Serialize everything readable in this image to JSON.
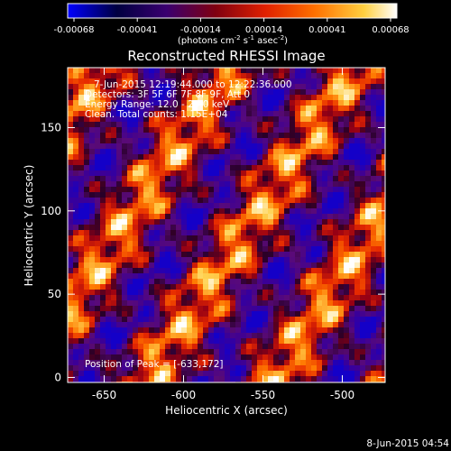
{
  "colorbar": {
    "ticks": [
      "-0.00068",
      "-0.00041",
      "-0.00014",
      "0.00014",
      "0.00041",
      "0.00068"
    ],
    "units_main": "(photons cm",
    "units_exp1": "-2",
    "units_mid": " s",
    "units_exp2": "-1",
    "units_mid2": " asec",
    "units_exp3": "-2",
    "units_end": ")",
    "colors": [
      "#0000ff",
      "#000060",
      "#400080",
      "#a00000",
      "#ff3000",
      "#ff8000",
      "#ffd060",
      "#ffffff"
    ]
  },
  "chart_data": {
    "type": "heatmap",
    "title": "Reconstructed RHESSI Image",
    "xlabel": "Heliocentric X (arcsec)",
    "ylabel": "Heliocentric Y (arcsec)",
    "xlim": [
      -673,
      -473
    ],
    "ylim": [
      -3,
      186
    ],
    "xticks": [
      -650,
      -600,
      -550,
      -500
    ],
    "yticks": [
      0,
      50,
      100,
      150
    ],
    "peak": {
      "x": -633,
      "y": 172
    },
    "annotations": [
      "7-Jun-2015 12:19:44.000 to 12:22:36.000",
      "Detectors: 3F 5F 6F 7F 8F 9F, Att 0",
      "Energy Range: 12.0 - 25.0 keV",
      "Clean.   Total counts: 1.15E+04"
    ],
    "peak_label": "Position of Peak = [-633,172]"
  },
  "footer": {
    "timestamp": "8-Jun-2015 04:54"
  }
}
